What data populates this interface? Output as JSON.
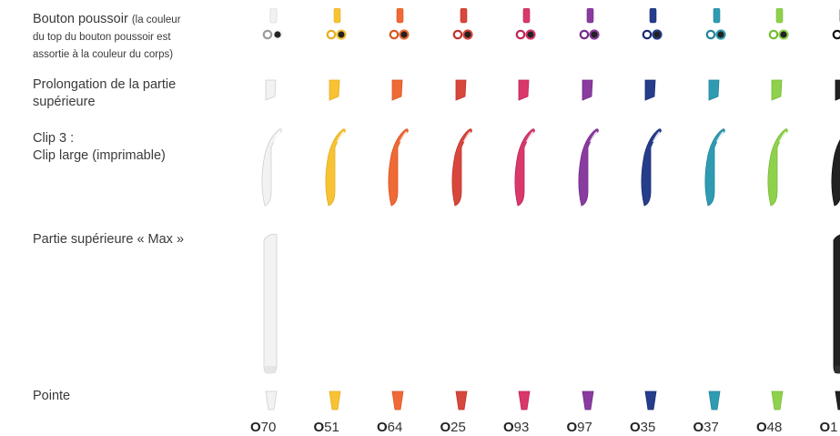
{
  "rows": {
    "push_button": {
      "title": "Bouton poussoir",
      "note_a": "(la couleur",
      "note_b": "du top du bouton poussoir est",
      "note_c": "assortie à la couleur du corps)"
    },
    "extension": {
      "line1": "Prolongation de la partie",
      "line2": "supérieure"
    },
    "clip": {
      "line1": "Clip 3 :",
      "line2": "Clip large (imprimable)"
    },
    "max_top": {
      "label": "Partie supérieure « Max »"
    },
    "tip": {
      "label": "Pointe"
    }
  },
  "colors": [
    {
      "prefix": "O",
      "number": "70",
      "hex": "#f2f2f2",
      "stroke": "#cfcfcf",
      "has_max": true
    },
    {
      "prefix": "O",
      "number": "51",
      "hex": "#f7c234",
      "stroke": "#e4ad1c",
      "has_max": false
    },
    {
      "prefix": "O",
      "number": "64",
      "hex": "#ef6a37",
      "stroke": "#d9551f",
      "has_max": false
    },
    {
      "prefix": "O",
      "number": "25",
      "hex": "#d8473d",
      "stroke": "#bf3329",
      "has_max": false
    },
    {
      "prefix": "O",
      "number": "93",
      "hex": "#d9386a",
      "stroke": "#bf2455",
      "has_max": false
    },
    {
      "prefix": "O",
      "number": "97",
      "hex": "#8a3ba0",
      "stroke": "#712a86",
      "has_max": false
    },
    {
      "prefix": "O",
      "number": "35",
      "hex": "#263d8c",
      "stroke": "#182c70",
      "has_max": false
    },
    {
      "prefix": "O",
      "number": "37",
      "hex": "#2f9bb2",
      "stroke": "#1f8498",
      "has_max": false
    },
    {
      "prefix": "O",
      "number": "48",
      "hex": "#8fd14d",
      "stroke": "#78bb36",
      "has_max": false
    },
    {
      "prefix": "O",
      "number": "1",
      "hex": "#222222",
      "stroke": "#111111",
      "has_max": true
    }
  ]
}
